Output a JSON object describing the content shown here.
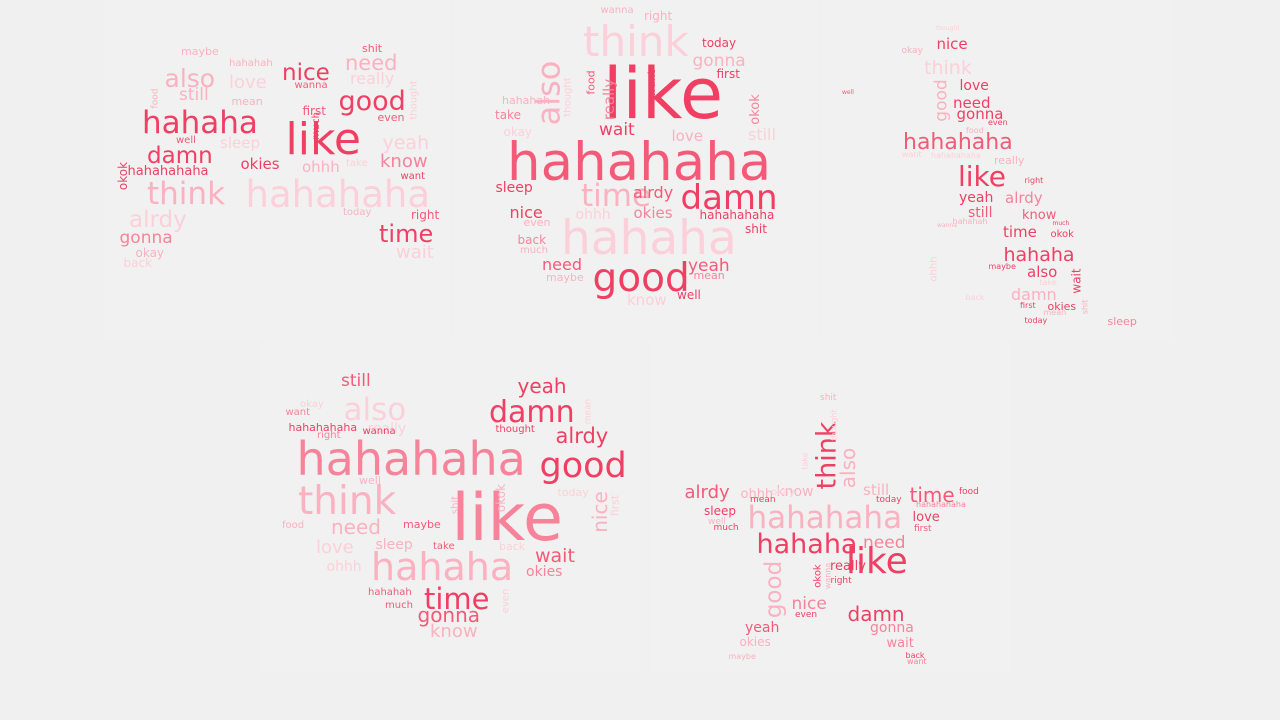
{
  "colors": {
    "c1": "#ef3f63",
    "c2": "#f35a78",
    "c3": "#f7839a",
    "c4": "#fab1c0",
    "c5": "#fcd0da",
    "background": "#f0f0f0"
  },
  "clouds": [
    {
      "name": "cloud-face",
      "words": [
        {
          "text": "maybe",
          "size": 11,
          "color": "c4"
        },
        {
          "text": "hahahah",
          "size": 10,
          "color": "c4"
        },
        {
          "text": "shit",
          "size": 11,
          "color": "c2"
        },
        {
          "text": "need",
          "size": 21,
          "color": "c4"
        },
        {
          "text": "also",
          "size": 25,
          "color": "c4"
        },
        {
          "text": "love",
          "size": 18,
          "color": "c5"
        },
        {
          "text": "nice",
          "size": 23,
          "color": "c1"
        },
        {
          "text": "really",
          "size": 16,
          "color": "c5"
        },
        {
          "text": "wanna",
          "size": 10,
          "color": "c2"
        },
        {
          "text": "still",
          "size": 17,
          "color": "c4"
        },
        {
          "text": "food",
          "size": 9,
          "color": "c4",
          "rotate": true
        },
        {
          "text": "mean",
          "size": 11,
          "color": "c4"
        },
        {
          "text": "good",
          "size": 27,
          "color": "c1"
        },
        {
          "text": "thought",
          "size": 10,
          "color": "c5",
          "rotate": true
        },
        {
          "text": "hahaha",
          "size": 31,
          "color": "c1"
        },
        {
          "text": "like",
          "size": 44,
          "color": "c1"
        },
        {
          "text": "first",
          "size": 12,
          "color": "c2"
        },
        {
          "text": "much",
          "size": 10,
          "color": "c1",
          "rotate": true
        },
        {
          "text": "even",
          "size": 11,
          "color": "c2"
        },
        {
          "text": "well",
          "size": 10,
          "color": "c2"
        },
        {
          "text": "sleep",
          "size": 15,
          "color": "c5"
        },
        {
          "text": "yeah",
          "size": 19,
          "color": "c5"
        },
        {
          "text": "damn",
          "size": 23,
          "color": "c1"
        },
        {
          "text": "okies",
          "size": 15,
          "color": "c1"
        },
        {
          "text": "ohhh",
          "size": 15,
          "color": "c4"
        },
        {
          "text": "take",
          "size": 10,
          "color": "c5"
        },
        {
          "text": "know",
          "size": 18,
          "color": "c3"
        },
        {
          "text": "okok",
          "size": 12,
          "color": "c1",
          "rotate": true
        },
        {
          "text": "hahahahaha",
          "size": 13,
          "color": "c1"
        },
        {
          "text": "want",
          "size": 10,
          "color": "c1"
        },
        {
          "text": "think",
          "size": 31,
          "color": "c4"
        },
        {
          "text": "hahahaha",
          "size": 37,
          "color": "c5"
        },
        {
          "text": "alrdy",
          "size": 23,
          "color": "c5"
        },
        {
          "text": "today",
          "size": 10,
          "color": "c4"
        },
        {
          "text": "right",
          "size": 12,
          "color": "c2"
        },
        {
          "text": "time",
          "size": 24,
          "color": "c1"
        },
        {
          "text": "gonna",
          "size": 17,
          "color": "c3"
        },
        {
          "text": "wait",
          "size": 18,
          "color": "c5"
        },
        {
          "text": "okay",
          "size": 12,
          "color": "c4"
        },
        {
          "text": "back",
          "size": 12,
          "color": "c5"
        }
      ]
    },
    {
      "name": "cloud-circle",
      "words": [
        {
          "text": "wanna",
          "size": 10,
          "color": "c4"
        },
        {
          "text": "right",
          "size": 12,
          "color": "c4"
        },
        {
          "text": "think",
          "size": 42,
          "color": "c5"
        },
        {
          "text": "today",
          "size": 12,
          "color": "c1"
        },
        {
          "text": "gonna",
          "size": 17,
          "color": "c4"
        },
        {
          "text": "also",
          "size": 32,
          "color": "c4",
          "rotate": true
        },
        {
          "text": "food",
          "size": 11,
          "color": "c2",
          "rotate": true
        },
        {
          "text": "thought",
          "size": 10,
          "color": "c5",
          "rotate": true
        },
        {
          "text": "want",
          "size": 11,
          "color": "c1",
          "rotate": true
        },
        {
          "text": "first",
          "size": 12,
          "color": "c1"
        },
        {
          "text": "like",
          "size": 70,
          "color": "c1"
        },
        {
          "text": "really",
          "size": 15,
          "color": "c3",
          "rotate": true
        },
        {
          "text": "okok",
          "size": 13,
          "color": "c3",
          "rotate": true
        },
        {
          "text": "hahahah",
          "size": 11,
          "color": "c4"
        },
        {
          "text": "take",
          "size": 12,
          "color": "c3"
        },
        {
          "text": "wait",
          "size": 17,
          "color": "c1"
        },
        {
          "text": "okay",
          "size": 12,
          "color": "c5"
        },
        {
          "text": "love",
          "size": 15,
          "color": "c4"
        },
        {
          "text": "still",
          "size": 16,
          "color": "c5"
        },
        {
          "text": "hahahaha",
          "size": 53,
          "color": "c2"
        },
        {
          "text": "time",
          "size": 31,
          "color": "c4"
        },
        {
          "text": "sleep",
          "size": 14,
          "color": "c1"
        },
        {
          "text": "alrdy",
          "size": 16,
          "color": "c2"
        },
        {
          "text": "damn",
          "size": 34,
          "color": "c1"
        },
        {
          "text": "nice",
          "size": 16,
          "color": "c1"
        },
        {
          "text": "ohhh",
          "size": 14,
          "color": "c5"
        },
        {
          "text": "okies",
          "size": 15,
          "color": "c3"
        },
        {
          "text": "hahahahaha",
          "size": 12,
          "color": "c1"
        },
        {
          "text": "even",
          "size": 11,
          "color": "c4"
        },
        {
          "text": "shit",
          "size": 12,
          "color": "c1"
        },
        {
          "text": "back",
          "size": 12,
          "color": "c3"
        },
        {
          "text": "hahaha",
          "size": 47,
          "color": "c5"
        },
        {
          "text": "much",
          "size": 10,
          "color": "c4"
        },
        {
          "text": "need",
          "size": 16,
          "color": "c2"
        },
        {
          "text": "yeah",
          "size": 17,
          "color": "c2"
        },
        {
          "text": "maybe",
          "size": 11,
          "color": "c4"
        },
        {
          "text": "good",
          "size": 39,
          "color": "c1"
        },
        {
          "text": "mean",
          "size": 11,
          "color": "c3"
        },
        {
          "text": "know",
          "size": 15,
          "color": "c5"
        },
        {
          "text": "well",
          "size": 12,
          "color": "c1"
        }
      ]
    },
    {
      "name": "cloud-figure",
      "words": [
        {
          "text": "thought",
          "size": 6,
          "color": "c5"
        },
        {
          "text": "okay",
          "size": 9,
          "color": "c4"
        },
        {
          "text": "nice",
          "size": 15,
          "color": "c1"
        },
        {
          "text": "think",
          "size": 19,
          "color": "c5"
        },
        {
          "text": "good",
          "size": 17,
          "color": "c4",
          "rotate": true
        },
        {
          "text": "love",
          "size": 14,
          "color": "c1"
        },
        {
          "text": "well",
          "size": 6,
          "color": "c2"
        },
        {
          "text": "need",
          "size": 15,
          "color": "c1"
        },
        {
          "text": "gonna",
          "size": 15,
          "color": "c1"
        },
        {
          "text": "even",
          "size": 8,
          "color": "c1"
        },
        {
          "text": "food",
          "size": 8,
          "color": "c4"
        },
        {
          "text": "hahahaha",
          "size": 22,
          "color": "c2"
        },
        {
          "text": "want",
          "size": 8,
          "color": "c5"
        },
        {
          "text": "hahahahaha",
          "size": 8,
          "color": "c5"
        },
        {
          "text": "really",
          "size": 11,
          "color": "c4"
        },
        {
          "text": "like",
          "size": 28,
          "color": "c1"
        },
        {
          "text": "right",
          "size": 8,
          "color": "c1"
        },
        {
          "text": "yeah",
          "size": 14,
          "color": "c1"
        },
        {
          "text": "alrdy",
          "size": 15,
          "color": "c3"
        },
        {
          "text": "still",
          "size": 14,
          "color": "c2"
        },
        {
          "text": "know",
          "size": 13,
          "color": "c2"
        },
        {
          "text": "hahahah",
          "size": 8,
          "color": "c4"
        },
        {
          "text": "much",
          "size": 6,
          "color": "c1"
        },
        {
          "text": "wanna",
          "size": 6,
          "color": "c4"
        },
        {
          "text": "time",
          "size": 15,
          "color": "c1"
        },
        {
          "text": "okok",
          "size": 10,
          "color": "c1"
        },
        {
          "text": "hahaha",
          "size": 19,
          "color": "c1"
        },
        {
          "text": "ohhh",
          "size": 10,
          "color": "c5",
          "rotate": true
        },
        {
          "text": "maybe",
          "size": 8,
          "color": "c1"
        },
        {
          "text": "also",
          "size": 15,
          "color": "c1"
        },
        {
          "text": "wait",
          "size": 12,
          "color": "c1",
          "rotate": true
        },
        {
          "text": "take",
          "size": 8,
          "color": "c5"
        },
        {
          "text": "damn",
          "size": 16,
          "color": "c4"
        },
        {
          "text": "okies",
          "size": 11,
          "color": "c1"
        },
        {
          "text": "back",
          "size": 8,
          "color": "c5"
        },
        {
          "text": "first",
          "size": 8,
          "color": "c1"
        },
        {
          "text": "mean",
          "size": 8,
          "color": "c4"
        },
        {
          "text": "shit",
          "size": 8,
          "color": "c4",
          "rotate": true
        },
        {
          "text": "today",
          "size": 8,
          "color": "c1"
        },
        {
          "text": "sleep",
          "size": 11,
          "color": "c3"
        }
      ]
    },
    {
      "name": "cloud-heart",
      "words": [
        {
          "text": "still",
          "size": 17,
          "color": "c2"
        },
        {
          "text": "okay",
          "size": 10,
          "color": "c5"
        },
        {
          "text": "also",
          "size": 31,
          "color": "c5"
        },
        {
          "text": "yeah",
          "size": 20,
          "color": "c1"
        },
        {
          "text": "mean",
          "size": 9,
          "color": "c5",
          "rotate": true
        },
        {
          "text": "want",
          "size": 10,
          "color": "c3"
        },
        {
          "text": "damn",
          "size": 30,
          "color": "c1"
        },
        {
          "text": "hahahahaha",
          "size": 11,
          "color": "c1"
        },
        {
          "text": "really",
          "size": 14,
          "color": "c5"
        },
        {
          "text": "right",
          "size": 10,
          "color": "c3"
        },
        {
          "text": "wanna",
          "size": 10,
          "color": "c1"
        },
        {
          "text": "thought",
          "size": 10,
          "color": "c1"
        },
        {
          "text": "alrdy",
          "size": 21,
          "color": "c1"
        },
        {
          "text": "hahahaha",
          "size": 46,
          "color": "c3"
        },
        {
          "text": "good",
          "size": 35,
          "color": "c1"
        },
        {
          "text": "well",
          "size": 11,
          "color": "c4"
        },
        {
          "text": "think",
          "size": 39,
          "color": "c4"
        },
        {
          "text": "like",
          "size": 65,
          "color": "c3"
        },
        {
          "text": "okok",
          "size": 12,
          "color": "c4",
          "rotate": true
        },
        {
          "text": "today",
          "size": 11,
          "color": "c5"
        },
        {
          "text": "nice",
          "size": 20,
          "color": "c4",
          "rotate": true
        },
        {
          "text": "first",
          "size": 11,
          "color": "c5",
          "rotate": true
        },
        {
          "text": "shit",
          "size": 10,
          "color": "c4",
          "rotate": true
        },
        {
          "text": "food",
          "size": 10,
          "color": "c4"
        },
        {
          "text": "need",
          "size": 20,
          "color": "c4"
        },
        {
          "text": "maybe",
          "size": 11,
          "color": "c2"
        },
        {
          "text": "love",
          "size": 18,
          "color": "c5"
        },
        {
          "text": "sleep",
          "size": 14,
          "color": "c4"
        },
        {
          "text": "take",
          "size": 10,
          "color": "c2"
        },
        {
          "text": "back",
          "size": 11,
          "color": "c5"
        },
        {
          "text": "wait",
          "size": 19,
          "color": "c2"
        },
        {
          "text": "ohhh",
          "size": 14,
          "color": "c5"
        },
        {
          "text": "hahaha",
          "size": 38,
          "color": "c4"
        },
        {
          "text": "okies",
          "size": 14,
          "color": "c3"
        },
        {
          "text": "hahahah",
          "size": 10,
          "color": "c2"
        },
        {
          "text": "time",
          "size": 29,
          "color": "c1"
        },
        {
          "text": "even",
          "size": 10,
          "color": "c5",
          "rotate": true
        },
        {
          "text": "much",
          "size": 10,
          "color": "c2"
        },
        {
          "text": "gonna",
          "size": 20,
          "color": "c2"
        },
        {
          "text": "know",
          "size": 18,
          "color": "c4"
        }
      ]
    },
    {
      "name": "cloud-star",
      "words": [
        {
          "text": "shit",
          "size": 9,
          "color": "c4"
        },
        {
          "text": "think",
          "size": 27,
          "color": "c1",
          "rotate": true
        },
        {
          "text": "thought",
          "size": 8,
          "color": "c5",
          "rotate": true
        },
        {
          "text": "also",
          "size": 20,
          "color": "c4",
          "rotate": true
        },
        {
          "text": "take",
          "size": 8,
          "color": "c5",
          "rotate": true
        },
        {
          "text": "alrdy",
          "size": 18,
          "color": "c2"
        },
        {
          "text": "ohhh",
          "size": 13,
          "color": "c4"
        },
        {
          "text": "know",
          "size": 14,
          "color": "c4"
        },
        {
          "text": "okay",
          "size": 10,
          "color": "c5"
        },
        {
          "text": "still",
          "size": 15,
          "color": "c4"
        },
        {
          "text": "time",
          "size": 20,
          "color": "c2"
        },
        {
          "text": "mean",
          "size": 9,
          "color": "c1"
        },
        {
          "text": "today",
          "size": 9,
          "color": "c1"
        },
        {
          "text": "food",
          "size": 9,
          "color": "c1"
        },
        {
          "text": "sleep",
          "size": 12,
          "color": "c1"
        },
        {
          "text": "hahahaha",
          "size": 31,
          "color": "c4"
        },
        {
          "text": "hahahahaha",
          "size": 8,
          "color": "c3"
        },
        {
          "text": "well",
          "size": 9,
          "color": "c4"
        },
        {
          "text": "much",
          "size": 9,
          "color": "c1"
        },
        {
          "text": "love",
          "size": 13,
          "color": "c1"
        },
        {
          "text": "first",
          "size": 9,
          "color": "c2"
        },
        {
          "text": "hahaha",
          "size": 27,
          "color": "c1"
        },
        {
          "text": "need",
          "size": 17,
          "color": "c3"
        },
        {
          "text": "good",
          "size": 23,
          "color": "c4",
          "rotate": true
        },
        {
          "text": "okok",
          "size": 10,
          "color": "c1",
          "rotate": true
        },
        {
          "text": "wanna",
          "size": 8,
          "color": "c4",
          "rotate": true
        },
        {
          "text": "really",
          "size": 13,
          "color": "c1"
        },
        {
          "text": "like",
          "size": 36,
          "color": "c1"
        },
        {
          "text": "right",
          "size": 9,
          "color": "c1"
        },
        {
          "text": "nice",
          "size": 17,
          "color": "c3"
        },
        {
          "text": "even",
          "size": 9,
          "color": "c1"
        },
        {
          "text": "damn",
          "size": 20,
          "color": "c1"
        },
        {
          "text": "yeah",
          "size": 14,
          "color": "c2"
        },
        {
          "text": "gonna",
          "size": 14,
          "color": "c3"
        },
        {
          "text": "okies",
          "size": 12,
          "color": "c4"
        },
        {
          "text": "wait",
          "size": 13,
          "color": "c3"
        },
        {
          "text": "back",
          "size": 8,
          "color": "c1"
        },
        {
          "text": "maybe",
          "size": 8,
          "color": "c4"
        },
        {
          "text": "want",
          "size": 8,
          "color": "c3"
        }
      ]
    }
  ]
}
